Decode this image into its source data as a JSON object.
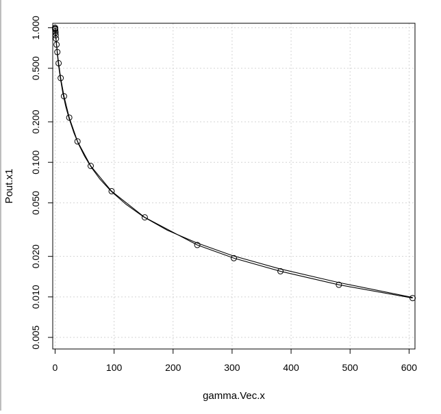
{
  "chart_data": {
    "type": "line",
    "title": "",
    "xlabel": "gamma.Vec.x",
    "ylabel": "Pout.x1",
    "xlim": [
      -4,
      610
    ],
    "ylim": [
      0.0041,
      1.08
    ],
    "y_scale": "log",
    "grid": true,
    "x_ticks": [
      0,
      100,
      200,
      300,
      400,
      500,
      600
    ],
    "x_tick_labels": [
      "0",
      "100",
      "200",
      "300",
      "400",
      "500",
      "600"
    ],
    "y_ticks": [
      0.005,
      0.01,
      0.02,
      0.05,
      0.1,
      0.2,
      0.5,
      1.0
    ],
    "y_tick_labels": [
      "0.005",
      "0.010",
      "0.020",
      "0.050",
      "0.100",
      "0.200",
      "0.500",
      "1.000"
    ],
    "series": [
      {
        "style": "points-and-lines",
        "color": "#000000",
        "x": [
          0.0,
          0.1,
          0.2,
          0.4,
          0.6,
          1.0,
          1.5,
          2.5,
          3.8,
          6.0,
          9.5,
          15.1,
          24.0,
          38.0,
          60.4,
          95.8,
          152,
          241,
          303,
          382,
          481,
          606
        ],
        "y": [
          1.0,
          0.985,
          0.972,
          0.945,
          0.92,
          0.88,
          0.83,
          0.75,
          0.66,
          0.545,
          0.423,
          0.31,
          0.215,
          0.143,
          0.094,
          0.061,
          0.039,
          0.0243,
          0.0194,
          0.0155,
          0.0123,
          0.0098
        ]
      },
      {
        "style": "line",
        "color": "#000000",
        "x": [
          0,
          1,
          2,
          4,
          6,
          9,
          13,
          18,
          24,
          32,
          40,
          50,
          62,
          76,
          95,
          120,
          150,
          190,
          240,
          300,
          380,
          480,
          606
        ],
        "y": [
          1.0,
          0.88,
          0.78,
          0.625,
          0.52,
          0.42,
          0.33,
          0.26,
          0.21,
          0.165,
          0.136,
          0.111,
          0.091,
          0.075,
          0.061,
          0.0488,
          0.0393,
          0.0313,
          0.0252,
          0.0203,
          0.0162,
          0.0128,
          0.0099
        ]
      }
    ]
  }
}
